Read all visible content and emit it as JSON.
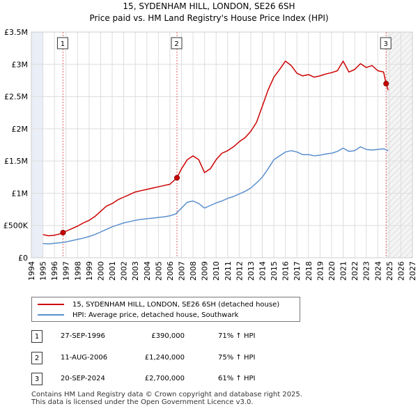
{
  "chart_data": {
    "type": "line",
    "title": "15, SYDENHAM HILL, LONDON, SE26 6SH",
    "subtitle": "Price paid vs. HM Land Registry's House Price Index (HPI)",
    "xlim": [
      1994,
      2027
    ],
    "ylim": [
      0,
      3500000
    ],
    "x_ticks": [
      "1994",
      "1995",
      "1996",
      "1997",
      "1998",
      "1999",
      "2000",
      "2001",
      "2002",
      "2003",
      "2004",
      "2005",
      "2006",
      "2007",
      "2008",
      "2009",
      "2010",
      "2011",
      "2012",
      "2013",
      "2014",
      "2015",
      "2016",
      "2017",
      "2018",
      "2019",
      "2020",
      "2021",
      "2022",
      "2023",
      "2024",
      "2025",
      "2026",
      "2027"
    ],
    "y_ticks": [
      {
        "value": 0,
        "label": "£0"
      },
      {
        "value": 500000,
        "label": "£500K"
      },
      {
        "value": 1000000,
        "label": "£1M"
      },
      {
        "value": 1500000,
        "label": "£1.5M"
      },
      {
        "value": 2000000,
        "label": "£2M"
      },
      {
        "value": 2500000,
        "label": "£2.5M"
      },
      {
        "value": 3000000,
        "label": "£3M"
      },
      {
        "value": 3500000,
        "label": "£3.5M"
      }
    ],
    "data_start": 1995.0,
    "hatch_from": 2024.72,
    "series": [
      {
        "name": "15, SYDENHAM HILL, LONDON, SE26 6SH (detached house)",
        "color": "#cc0000",
        "x": [
          1995.0,
          1995.5,
          1996.0,
          1996.5,
          1996.74,
          1997.0,
          1997.5,
          1998.0,
          1998.5,
          1999.0,
          1999.5,
          2000.0,
          2000.5,
          2001.0,
          2001.5,
          2002.0,
          2002.5,
          2003.0,
          2003.5,
          2004.0,
          2004.5,
          2005.0,
          2005.5,
          2006.0,
          2006.61,
          2007.0,
          2007.5,
          2008.0,
          2008.5,
          2009.0,
          2009.5,
          2010.0,
          2010.5,
          2011.0,
          2011.5,
          2012.0,
          2012.5,
          2013.0,
          2013.5,
          2014.0,
          2014.5,
          2015.0,
          2015.5,
          2016.0,
          2016.5,
          2017.0,
          2017.5,
          2018.0,
          2018.5,
          2019.0,
          2019.5,
          2020.0,
          2020.5,
          2021.0,
          2021.5,
          2022.0,
          2022.5,
          2023.0,
          2023.5,
          2024.0,
          2024.5,
          2024.72,
          2024.9
        ],
        "values": [
          360000,
          340000,
          350000,
          370000,
          390000,
          410000,
          450000,
          490000,
          540000,
          580000,
          640000,
          720000,
          800000,
          840000,
          900000,
          940000,
          980000,
          1020000,
          1040000,
          1060000,
          1080000,
          1100000,
          1120000,
          1140000,
          1240000,
          1380000,
          1520000,
          1580000,
          1520000,
          1320000,
          1380000,
          1520000,
          1620000,
          1660000,
          1720000,
          1800000,
          1860000,
          1960000,
          2100000,
          2350000,
          2600000,
          2800000,
          2920000,
          3050000,
          2980000,
          2860000,
          2820000,
          2840000,
          2800000,
          2820000,
          2850000,
          2870000,
          2900000,
          3050000,
          2880000,
          2920000,
          3010000,
          2950000,
          2980000,
          2900000,
          2880000,
          2700000,
          2600000
        ]
      },
      {
        "name": "HPI: Average price, detached house, Southwark",
        "color": "#5b8fcf",
        "x": [
          1995.0,
          1995.5,
          1996.0,
          1996.5,
          1997.0,
          1997.5,
          1998.0,
          1998.5,
          1999.0,
          1999.5,
          2000.0,
          2000.5,
          2001.0,
          2001.5,
          2002.0,
          2002.5,
          2003.0,
          2003.5,
          2004.0,
          2004.5,
          2005.0,
          2005.5,
          2006.0,
          2006.5,
          2007.0,
          2007.5,
          2008.0,
          2008.5,
          2009.0,
          2009.5,
          2010.0,
          2010.5,
          2011.0,
          2011.5,
          2012.0,
          2012.5,
          2013.0,
          2013.5,
          2014.0,
          2014.5,
          2015.0,
          2015.5,
          2016.0,
          2016.5,
          2017.0,
          2017.5,
          2018.0,
          2018.5,
          2019.0,
          2019.5,
          2020.0,
          2020.5,
          2021.0,
          2021.5,
          2022.0,
          2022.5,
          2023.0,
          2023.5,
          2024.0,
          2024.5,
          2024.9
        ],
        "values": [
          220000,
          215000,
          225000,
          232000,
          245000,
          265000,
          285000,
          305000,
          330000,
          360000,
          400000,
          440000,
          480000,
          510000,
          540000,
          560000,
          580000,
          595000,
          605000,
          615000,
          625000,
          635000,
          650000,
          680000,
          770000,
          860000,
          880000,
          840000,
          770000,
          810000,
          850000,
          880000,
          920000,
          950000,
          990000,
          1030000,
          1080000,
          1160000,
          1250000,
          1380000,
          1520000,
          1580000,
          1640000,
          1660000,
          1640000,
          1600000,
          1600000,
          1580000,
          1590000,
          1610000,
          1620000,
          1650000,
          1700000,
          1650000,
          1660000,
          1720000,
          1680000,
          1670000,
          1680000,
          1690000,
          1660000
        ]
      }
    ],
    "sales": [
      {
        "label": "1",
        "x": 1996.74,
        "value": 390000
      },
      {
        "label": "2",
        "x": 2006.61,
        "value": 1240000
      },
      {
        "label": "3",
        "x": 2024.72,
        "value": 2700000
      }
    ],
    "legend_position": "bottom"
  },
  "legend": {
    "property_label": "15, SYDENHAM HILL, LONDON, SE26 6SH (detached house)",
    "hpi_label": "HPI: Average price, detached house, Southwark",
    "property_color": "#cc0000",
    "hpi_color": "#5b8fcf"
  },
  "transactions": [
    {
      "num": "1",
      "date": "27-SEP-1996",
      "price": "£390,000",
      "hpi": "71% ↑ HPI"
    },
    {
      "num": "2",
      "date": "11-AUG-2006",
      "price": "£1,240,000",
      "hpi": "75% ↑ HPI"
    },
    {
      "num": "3",
      "date": "20-SEP-2024",
      "price": "£2,700,000",
      "hpi": "61% ↑ HPI"
    }
  ],
  "footer": {
    "line1": "Contains HM Land Registry data © Crown copyright and database right 2025.",
    "line2": "This data is licensed under the Open Government Licence v3.0."
  }
}
